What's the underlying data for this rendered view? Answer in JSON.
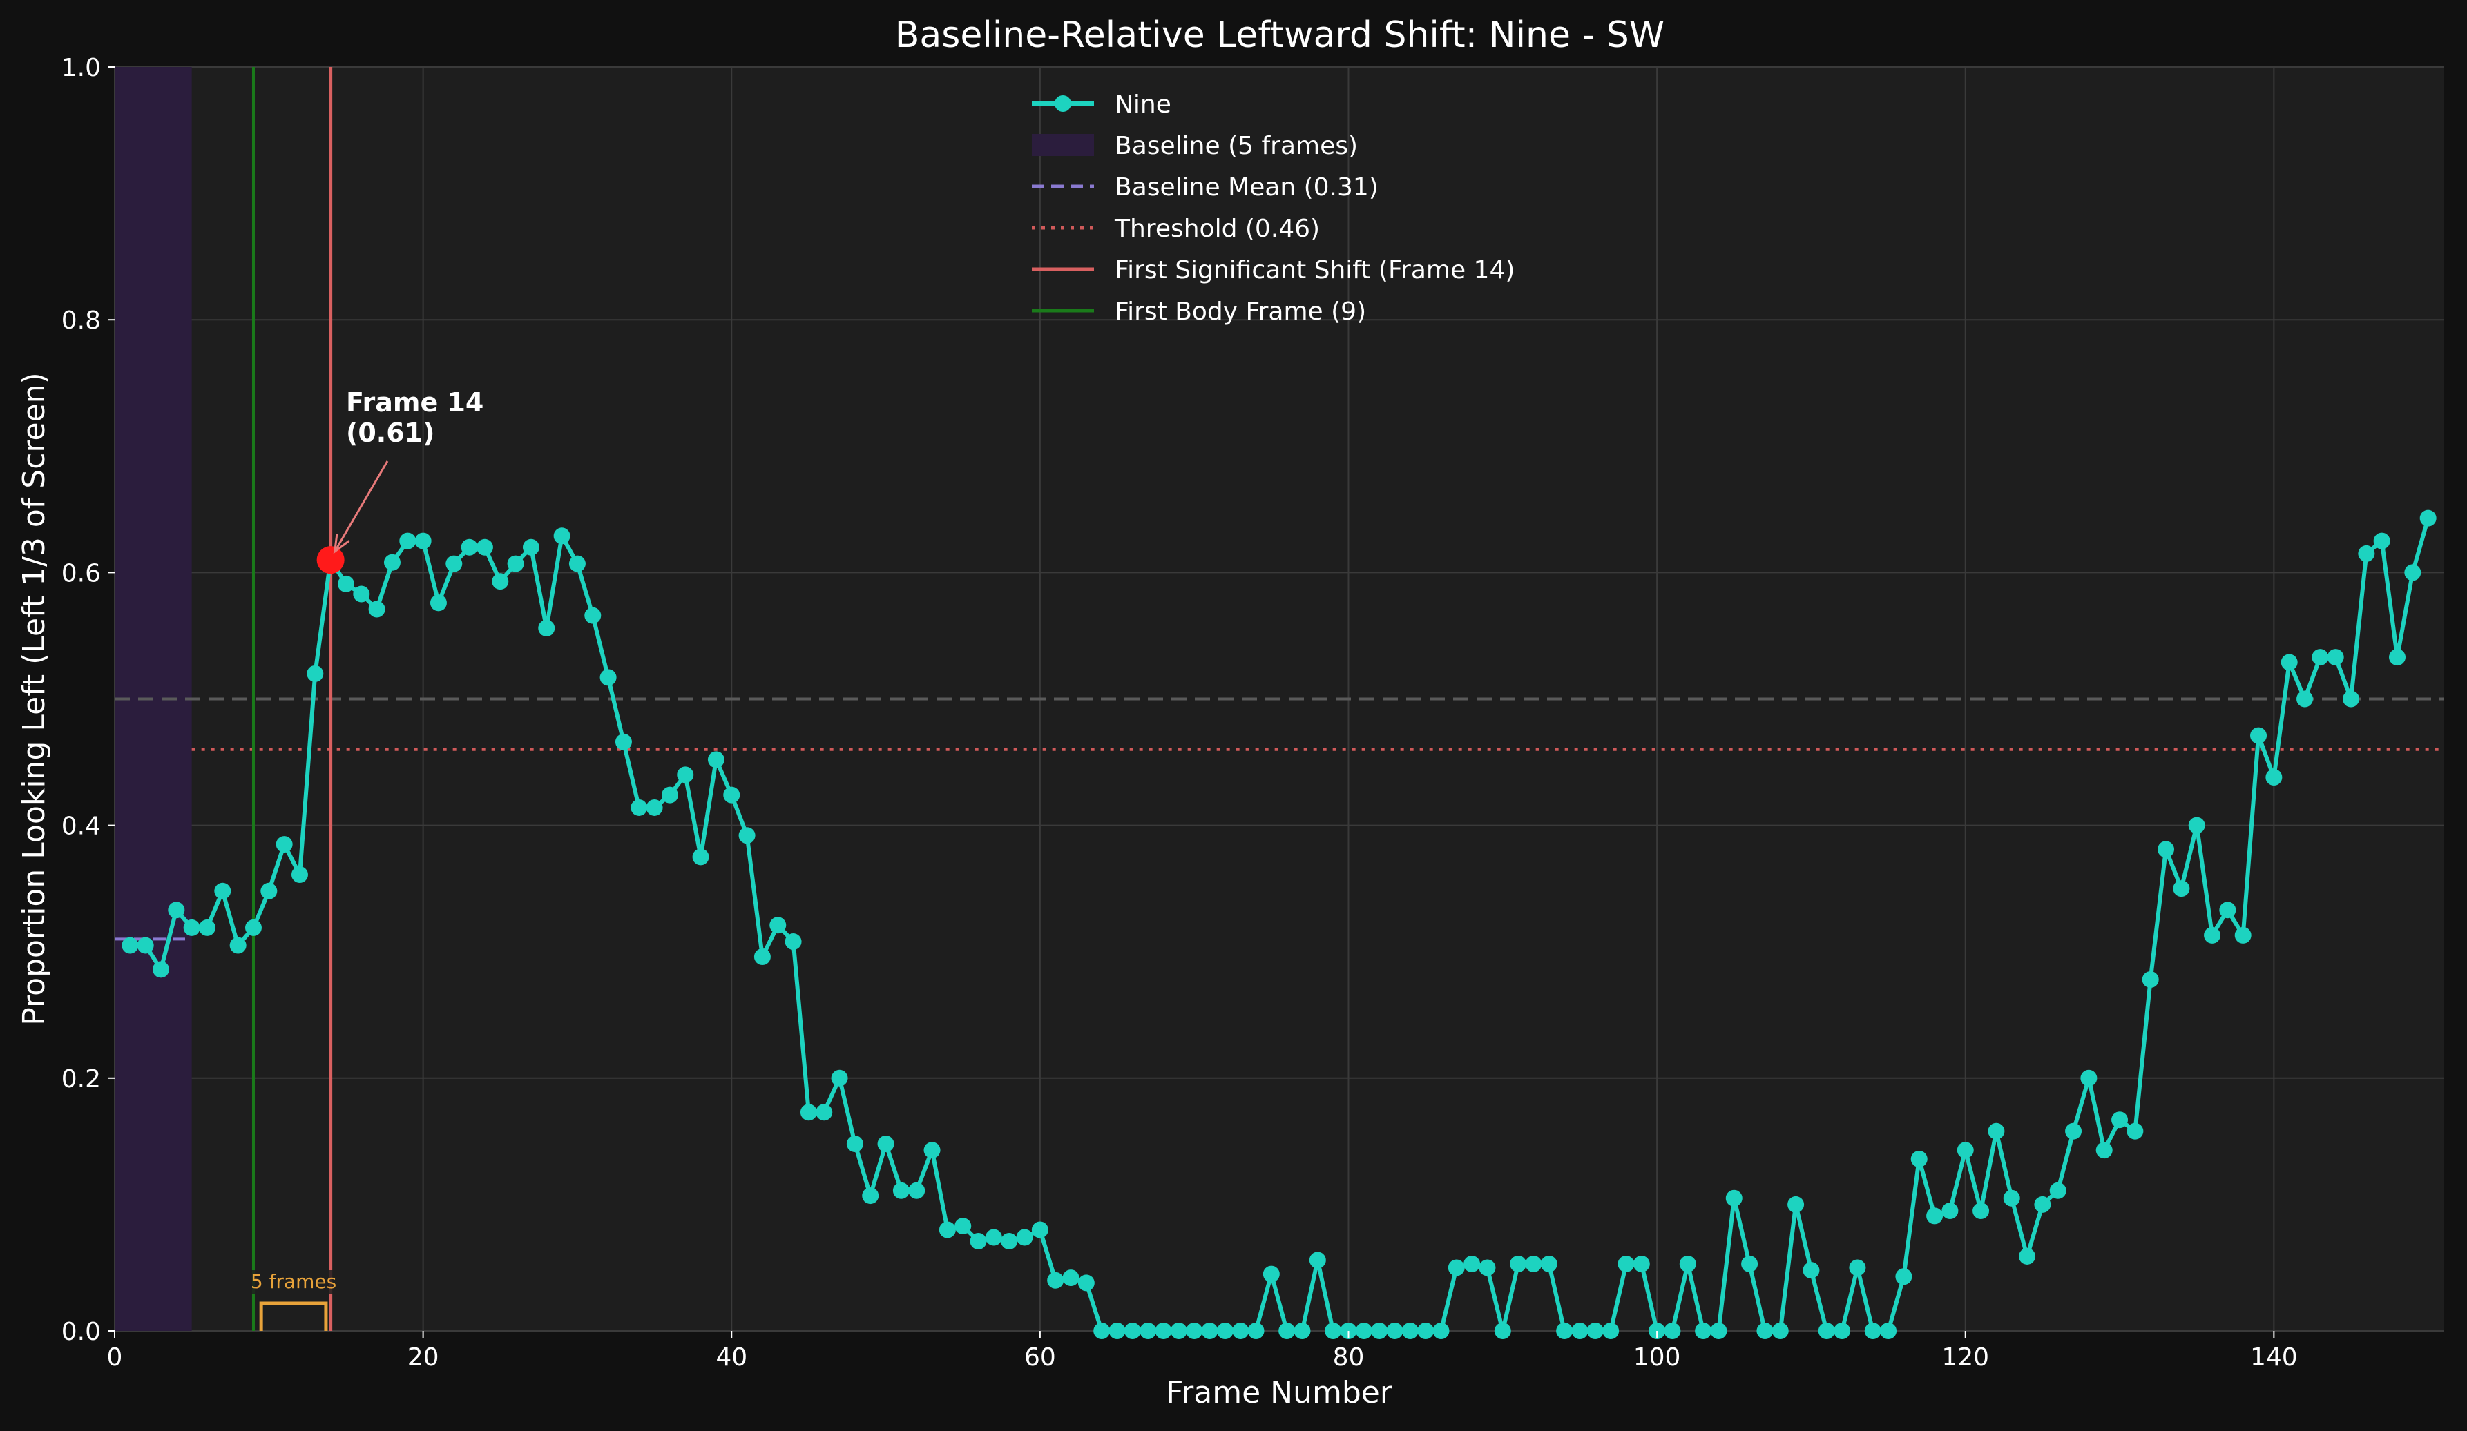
{
  "chart_data": {
    "type": "line",
    "title": "Baseline-Relative Leftward Shift: Nine - SW",
    "xlabel": "Frame Number",
    "ylabel": "Proportion Looking Left (Left 1/3 of Screen)",
    "xlim": [
      0,
      151
    ],
    "ylim": [
      0,
      1.0
    ],
    "xticks": [
      0,
      20,
      40,
      60,
      80,
      100,
      120,
      140
    ],
    "yticks": [
      0.0,
      0.2,
      0.4,
      0.6,
      0.8,
      1.0
    ],
    "grid": true,
    "legend_position": "top-center",
    "series": [
      {
        "name": "Nine",
        "color": "#1dd3c0",
        "x": [
          1,
          2,
          3,
          4,
          5,
          6,
          7,
          8,
          9,
          10,
          11,
          12,
          13,
          14,
          15,
          16,
          17,
          18,
          19,
          20,
          21,
          22,
          23,
          24,
          25,
          26,
          27,
          28,
          29,
          30,
          31,
          32,
          33,
          34,
          35,
          36,
          37,
          38,
          39,
          40,
          41,
          42,
          43,
          44,
          45,
          46,
          47,
          48,
          49,
          50,
          51,
          52,
          53,
          54,
          55,
          56,
          57,
          58,
          59,
          60,
          61,
          62,
          63,
          64,
          65,
          66,
          67,
          68,
          69,
          70,
          71,
          72,
          73,
          74,
          75,
          76,
          77,
          78,
          79,
          80,
          81,
          82,
          83,
          84,
          85,
          86,
          87,
          88,
          89,
          90,
          91,
          92,
          93,
          94,
          95,
          96,
          97,
          98,
          99,
          100,
          101,
          102,
          103,
          104,
          105,
          106,
          107,
          108,
          109,
          110,
          111,
          112,
          113,
          114,
          115,
          116,
          117,
          118,
          119,
          120,
          121,
          122,
          123,
          124,
          125,
          126,
          127,
          128,
          129,
          130,
          131,
          132,
          133,
          134,
          135,
          136,
          137,
          138,
          139,
          140,
          141,
          142,
          143,
          144,
          145,
          146,
          147,
          148,
          149,
          150
        ],
        "y": [
          0.305,
          0.305,
          0.286,
          0.333,
          0.319,
          0.319,
          0.348,
          0.305,
          0.319,
          0.348,
          0.385,
          0.361,
          0.52,
          0.61,
          0.591,
          0.583,
          0.571,
          0.608,
          0.625,
          0.625,
          0.576,
          0.607,
          0.62,
          0.62,
          0.593,
          0.607,
          0.62,
          0.556,
          0.629,
          0.607,
          0.566,
          0.517,
          0.466,
          0.414,
          0.414,
          0.424,
          0.44,
          0.375,
          0.452,
          0.424,
          0.392,
          0.296,
          0.321,
          0.308,
          0.173,
          0.173,
          0.2,
          0.148,
          0.107,
          0.148,
          0.111,
          0.111,
          0.143,
          0.08,
          0.083,
          0.071,
          0.074,
          0.071,
          0.074,
          0.08,
          0.04,
          0.042,
          0.038,
          0.0,
          0.0,
          0.0,
          0.0,
          0.0,
          0.0,
          0.0,
          0.0,
          0.0,
          0.0,
          0.0,
          0.045,
          0.0,
          0.0,
          0.056,
          0.0,
          0.0,
          0.0,
          0.0,
          0.0,
          0.0,
          0.0,
          0.0,
          0.05,
          0.053,
          0.05,
          0.0,
          0.053,
          0.053,
          0.053,
          0.0,
          0.0,
          0.0,
          0.0,
          0.053,
          0.053,
          0.0,
          0.0,
          0.053,
          0.0,
          0.0,
          0.105,
          0.053,
          0.0,
          0.0,
          0.1,
          0.048,
          0.0,
          0.0,
          0.05,
          0.0,
          0.0,
          0.043,
          0.136,
          0.091,
          0.095,
          0.143,
          0.095,
          0.158,
          0.105,
          0.059,
          0.1,
          0.111,
          0.158,
          0.2,
          0.143,
          0.167,
          0.158,
          0.278,
          0.381,
          0.35,
          0.4,
          0.313,
          0.333,
          0.313,
          0.471,
          0.438,
          0.529,
          0.5,
          0.533,
          0.533,
          0.5,
          0.615,
          0.625,
          0.533,
          0.6,
          0.643
        ]
      }
    ],
    "reference_lines": {
      "horizontal_grey_dashed": 0.5,
      "threshold": 0.46,
      "baseline_mean": 0.31,
      "first_significant_shift_frame": 14,
      "first_body_frame": 9
    },
    "baseline_region": [
      0,
      5
    ],
    "highlight_point": {
      "x": 14,
      "y": 0.61
    },
    "annotation": {
      "line1": "Frame 14",
      "line2": "(0.61)",
      "x": 15,
      "y": 0.71
    },
    "bracket": {
      "x_start": 9.5,
      "x_end": 13.7,
      "label": "5 frames"
    },
    "legend": [
      {
        "label": "Nine",
        "style": "line-marker",
        "color": "#1dd3c0"
      },
      {
        "label": "Baseline (5 frames)",
        "style": "patch",
        "color": "#2b1d3d"
      },
      {
        "label": "Baseline Mean (0.31)",
        "style": "dashed",
        "color": "#8a7ad0"
      },
      {
        "label": "Threshold (0.46)",
        "style": "dotted",
        "color": "#d05a5a"
      },
      {
        "label": "First Significant Shift (Frame 14)",
        "style": "solid",
        "color": "#d86060"
      },
      {
        "label": "First Body Frame (9)",
        "style": "solid",
        "color": "#1a7a1a"
      }
    ],
    "colors": {
      "background": "#111111",
      "plot_background": "#1e1e1e",
      "grid": "#3a3a3a",
      "highlight": "#ff1a1a",
      "arrow": "#e87a7a",
      "bracket": "#e8a33a"
    }
  }
}
